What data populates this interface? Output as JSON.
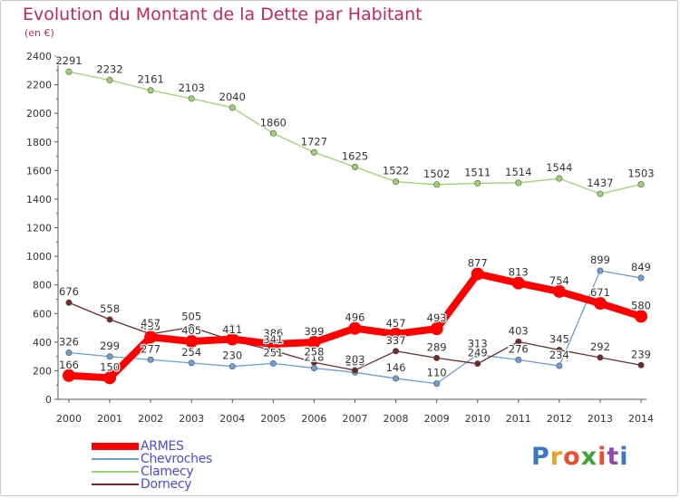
{
  "header": {
    "title": "Evolution du Montant de la Dette par Habitant",
    "unit": "(en €)"
  },
  "logo": {
    "text": "Proxiti",
    "letter_colors": [
      "#3a78c4",
      "#f0a020",
      "#e84f2e",
      "#3aa63a",
      "#e84f2e",
      "#8a4ab0",
      "#3a78c4"
    ]
  },
  "colors": {
    "title": "#c8265a",
    "axis": "#555555",
    "grid": "#dddddd",
    "legend_text": "#4a4ae0"
  },
  "chart_data": {
    "type": "line",
    "title": "Evolution du Montant de la Dette par Habitant",
    "ylabel": "(en €)",
    "x": [
      2000,
      2001,
      2002,
      2003,
      2004,
      2005,
      2006,
      2007,
      2008,
      2009,
      2010,
      2011,
      2012,
      2013,
      2014
    ],
    "ylim": [
      0,
      2400
    ],
    "yticks": [
      0,
      200,
      400,
      600,
      800,
      1000,
      1200,
      1400,
      1600,
      1800,
      2000,
      2200,
      2400
    ],
    "grid": false,
    "legend_position": "bottom-left",
    "series": [
      {
        "name": "ARMES",
        "color": "#ff0000",
        "values": [
          166,
          150,
          435,
          405,
          421,
          386,
          399,
          496,
          457,
          493,
          877,
          813,
          754,
          671,
          580
        ]
      },
      {
        "name": "Chevroches",
        "color": "#6a9fd4",
        "values": [
          326,
          299,
          277,
          254,
          230,
          251,
          218,
          188,
          146,
          110,
          313,
          276,
          234,
          899,
          849
        ]
      },
      {
        "name": "Clamecy",
        "color": "#9bd46b",
        "values": [
          2291,
          2232,
          2161,
          2103,
          2040,
          1860,
          1727,
          1625,
          1522,
          1502,
          1511,
          1514,
          1544,
          1437,
          1503
        ]
      },
      {
        "name": "Dornecy",
        "color": "#6e2a2a",
        "values": [
          676,
          558,
          457,
          505,
          411,
          341,
          258,
          203,
          337,
          289,
          249,
          403,
          345,
          292,
          239
        ]
      }
    ]
  }
}
